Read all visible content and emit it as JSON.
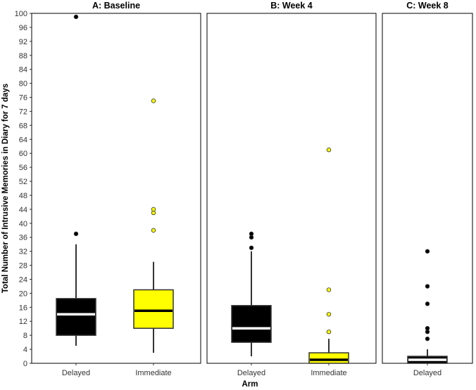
{
  "chart_data": {
    "type": "boxplot",
    "xlabel": "Arm",
    "ylabel": "Total Number of Intrusive Memories in Diary for 7 days",
    "ylim": [
      0,
      100
    ],
    "y_ticks": [
      0,
      4,
      8,
      12,
      16,
      20,
      24,
      28,
      32,
      36,
      40,
      44,
      48,
      52,
      56,
      60,
      64,
      68,
      72,
      76,
      80,
      84,
      88,
      92,
      96,
      100
    ],
    "colors": {
      "Delayed": "#000000",
      "Immediate": "#ffff00",
      "median_on_dark": "#ffffff",
      "median_on_light": "#000000",
      "outline": "#333333"
    },
    "panels": [
      {
        "title": "A: Baseline",
        "boxes": [
          {
            "group": "Delayed",
            "whisker_low": 5,
            "q1": 8,
            "median": 14,
            "q3": 18.5,
            "whisker_high": 34,
            "outliers": [
              37,
              99
            ]
          },
          {
            "group": "Immediate",
            "whisker_low": 3,
            "q1": 10,
            "median": 15,
            "q3": 21,
            "whisker_high": 29,
            "outliers": [
              38,
              43,
              44,
              75
            ]
          }
        ]
      },
      {
        "title": "B: Week 4",
        "boxes": [
          {
            "group": "Delayed",
            "whisker_low": 2,
            "q1": 6,
            "median": 10,
            "q3": 16.5,
            "whisker_high": 32,
            "outliers": [
              33,
              36,
              37
            ]
          },
          {
            "group": "Immediate",
            "whisker_low": 0,
            "q1": 0,
            "median": 1,
            "q3": 3,
            "whisker_high": 7,
            "outliers": [
              9,
              14,
              21,
              61
            ]
          }
        ]
      },
      {
        "title": "C: Week 8",
        "boxes": [
          {
            "group": "Delayed",
            "whisker_low": 0,
            "q1": 0,
            "median": 1,
            "q3": 2,
            "whisker_high": 4,
            "outliers": [
              7,
              9,
              10,
              17,
              22,
              32
            ]
          }
        ]
      }
    ]
  }
}
